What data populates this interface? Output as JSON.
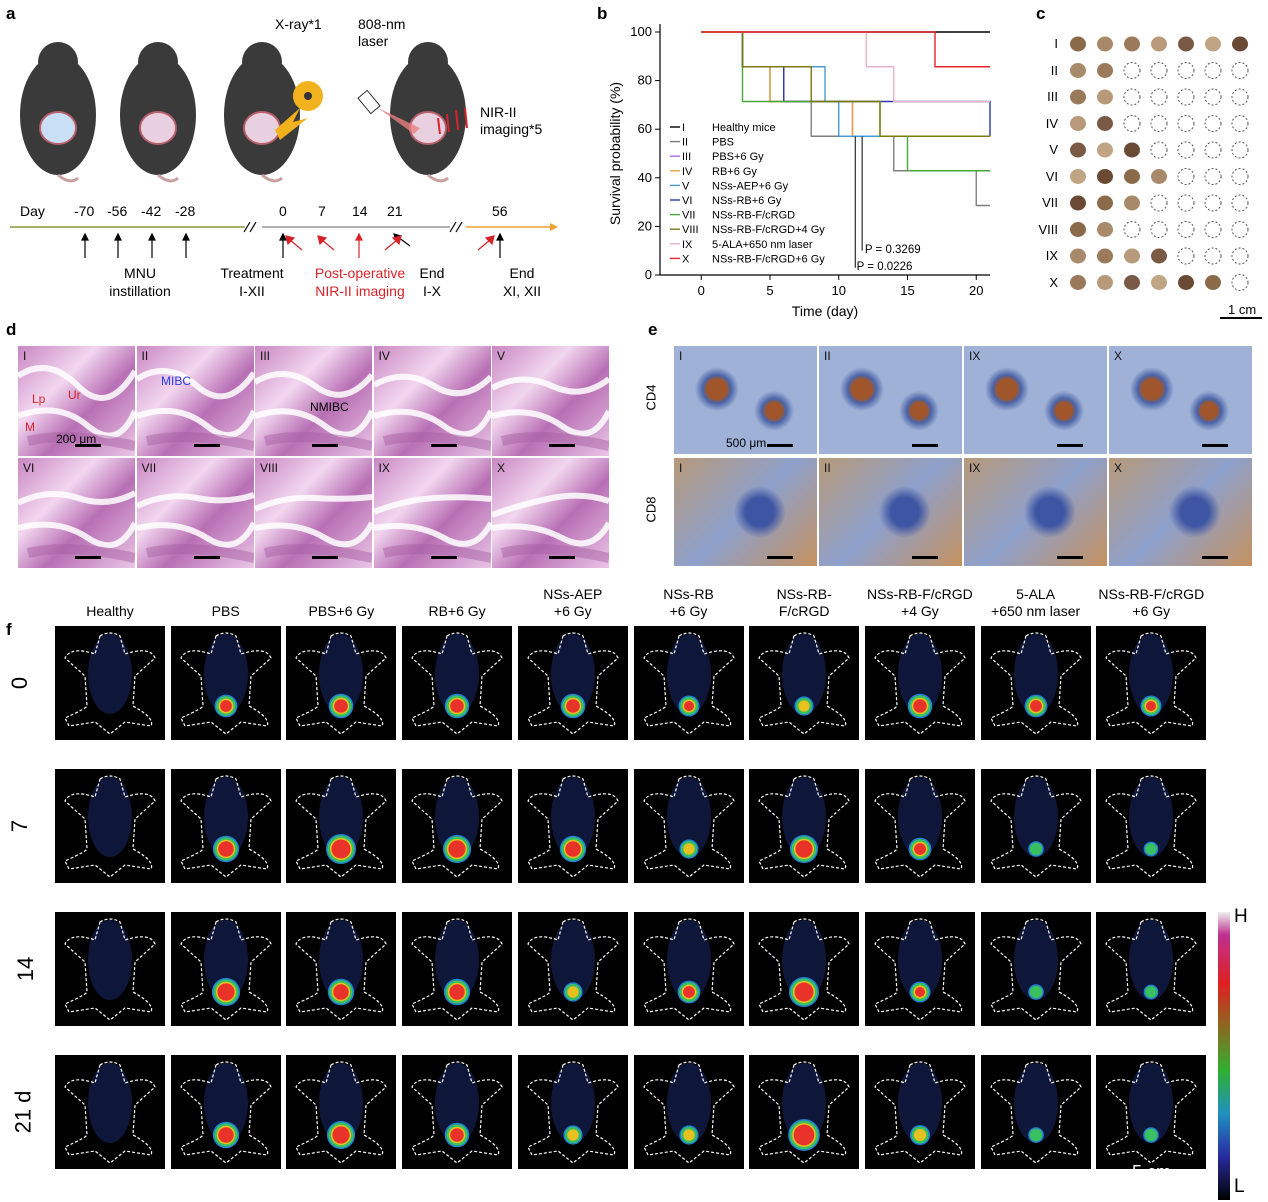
{
  "panels": {
    "a": "a",
    "b": "b",
    "c": "c",
    "d": "d",
    "e": "e",
    "f": "f"
  },
  "panel_a": {
    "xray": "X-ray*1",
    "laser": "808-nm\nlaser",
    "laser_line1": "808-nm",
    "laser_line2": "laser",
    "nir_line1": "NIR-II",
    "nir_line2": "imaging*5",
    "day": "Day",
    "ticks": [
      "-70",
      "-56",
      "-42",
      "-28",
      "0",
      "7",
      "14",
      "21",
      "56"
    ],
    "mnu_line1": "MNU",
    "mnu_line2": "instillation",
    "treatment_line1": "Treatment",
    "treatment_line2": "I-XII",
    "postop_line1": "Post-operative",
    "postop_line2": "NIR-II imaging",
    "end1_line1": "End",
    "end1_line2": "I-X",
    "end2_line1": "End",
    "end2_line2": "XI, XII"
  },
  "chart_data": {
    "type": "line",
    "title": "",
    "xlabel": "Time (day)",
    "ylabel": "Survival probability (%)",
    "xlim": [
      -3,
      21
    ],
    "ylim": [
      0,
      100
    ],
    "xticks": [
      0,
      5,
      10,
      15,
      20
    ],
    "yticks": [
      0,
      20,
      40,
      60,
      80,
      100
    ],
    "step": true,
    "series": [
      {
        "id": "I",
        "name": "Healthy mice",
        "color": "#000000",
        "x": [
          0,
          21
        ],
        "y": [
          100,
          100
        ]
      },
      {
        "id": "II",
        "name": "PBS",
        "color": "#7f7f7f",
        "x": [
          0,
          3,
          5,
          8,
          11,
          14,
          20,
          21
        ],
        "y": [
          100,
          85.7,
          71.4,
          57.1,
          57.1,
          42.9,
          28.6,
          28.6
        ]
      },
      {
        "id": "III",
        "name": "PBS+6 Gy",
        "color": "#b36ad6",
        "x": [
          0,
          3,
          6,
          11,
          21
        ],
        "y": [
          100,
          85.7,
          71.4,
          57.1,
          57.1
        ]
      },
      {
        "id": "IV",
        "name": "RB+6 Gy",
        "color": "#e8a33a",
        "x": [
          0,
          3,
          5,
          9,
          11,
          21
        ],
        "y": [
          100,
          85.7,
          71.4,
          71.4,
          57.1,
          57.1
        ]
      },
      {
        "id": "V",
        "name": "NSs-AEP+6 Gy",
        "color": "#4a9ad8",
        "x": [
          0,
          3,
          9,
          10,
          21
        ],
        "y": [
          100,
          85.7,
          71.4,
          57.1,
          57.1
        ]
      },
      {
        "id": "VI",
        "name": "NSs-RB+6 Gy",
        "color": "#2a3aa8",
        "x": [
          0,
          3,
          6,
          21
        ],
        "y": [
          100,
          85.7,
          71.4,
          57.1
        ]
      },
      {
        "id": "VII",
        "name": "NSs-RB-F/cRGD",
        "color": "#4aa63a",
        "x": [
          0,
          3,
          10,
          13,
          15,
          21
        ],
        "y": [
          100,
          71.4,
          71.4,
          57.1,
          42.9,
          42.9
        ]
      },
      {
        "id": "VIII",
        "name": "NSs-RB-F/cRGD+4 Gy",
        "color": "#7a7a10",
        "x": [
          0,
          3,
          5,
          8,
          12,
          13,
          21
        ],
        "y": [
          100,
          85.7,
          85.7,
          71.4,
          71.4,
          57.1,
          57.1
        ]
      },
      {
        "id": "IX",
        "name": "5-ALA+650 nm laser",
        "color": "#e8b3c8",
        "x": [
          0,
          12,
          14,
          21
        ],
        "y": [
          100,
          85.7,
          71.4,
          71.4
        ]
      },
      {
        "id": "X",
        "name": "NSs-RB-F/cRGD+6 Gy",
        "color": "#e8232a",
        "x": [
          0,
          17,
          21
        ],
        "y": [
          100,
          85.7,
          85.7
        ]
      }
    ],
    "annotations": [
      "P = 0.3269",
      "P = 0.0226"
    ]
  },
  "panel_c": {
    "rows": [
      "I",
      "II",
      "III",
      "IV",
      "V",
      "VI",
      "VII",
      "VIII",
      "IX",
      "X"
    ],
    "present": [
      7,
      2,
      2,
      2,
      3,
      4,
      3,
      2,
      4,
      6
    ],
    "scale": "1 cm"
  },
  "panel_d": {
    "labels": [
      "I",
      "II",
      "III",
      "IV",
      "V",
      "VI",
      "VII",
      "VIII",
      "IX",
      "X"
    ],
    "lp": "Lp",
    "ur": "Ur",
    "m": "M",
    "mibc": "MIBC",
    "nmibc": "NMIBC",
    "scale": "200 μm"
  },
  "panel_e": {
    "row_labels": [
      "CD4",
      "CD8"
    ],
    "col_labels": [
      "I",
      "II",
      "IX",
      "X"
    ],
    "scale": "500 μm"
  },
  "panel_f": {
    "groups": [
      [
        "Healthy",
        ""
      ],
      [
        "PBS",
        ""
      ],
      [
        "PBS+6 Gy",
        ""
      ],
      [
        "RB+6 Gy",
        ""
      ],
      [
        "NSs-AEP",
        "+6 Gy"
      ],
      [
        "NSs-RB",
        "+6 Gy"
      ],
      [
        "NSs-RB-",
        "F/cRGD"
      ],
      [
        "NSs-RB-F/cRGD",
        "+4 Gy"
      ],
      [
        "5-ALA",
        "+650 nm laser"
      ],
      [
        "NSs-RB-F/cRGD",
        "+6 Gy"
      ]
    ],
    "rows": [
      "0",
      "7",
      "14",
      "21 d"
    ],
    "colorbar_high": "H",
    "colorbar_low": "L",
    "scale": "5 cm",
    "signal": [
      [
        0,
        0.6,
        0.7,
        0.7,
        0.7,
        0.5,
        0.4,
        0.7,
        0.6,
        0.5
      ],
      [
        0,
        0.8,
        1.0,
        0.9,
        0.8,
        0.4,
        0.9,
        0.6,
        0.2,
        0.15
      ],
      [
        0,
        0.9,
        0.8,
        0.8,
        0.4,
        0.6,
        1.0,
        0.5,
        0.2,
        0.15
      ],
      [
        0,
        0.8,
        0.9,
        0.7,
        0.4,
        0.4,
        1.1,
        0.45,
        0.2,
        0.2
      ]
    ]
  }
}
